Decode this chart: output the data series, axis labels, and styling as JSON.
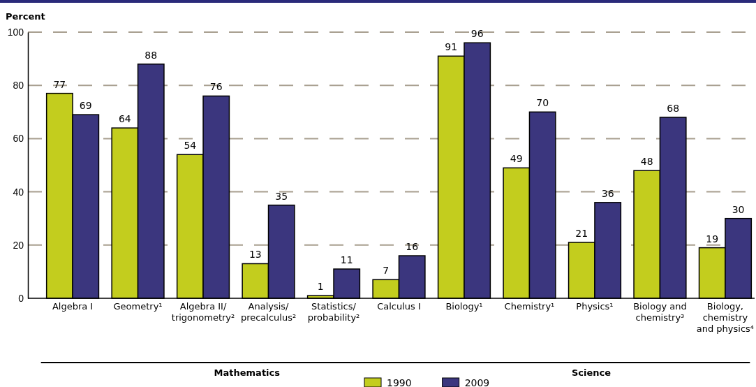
{
  "chart_data": {
    "type": "bar",
    "ylabel": "Percent",
    "categories": [
      "Algebra I",
      "Geometry¹",
      "Algebra II/trigonometry²",
      "Analysis/precalculus²",
      "Statistics/probability²",
      "Calculus I",
      "Biology¹",
      "Chemistry¹",
      "Physics¹",
      "Biology and chemistry³",
      "Biology, chemistry and physics⁴"
    ],
    "series": [
      {
        "name": "1990",
        "color": "#c3cd1e",
        "values": [
          77,
          64,
          54,
          13,
          1,
          7,
          91,
          49,
          21,
          48,
          19
        ]
      },
      {
        "name": "2009",
        "color": "#3b367e",
        "values": [
          69,
          88,
          76,
          35,
          11,
          16,
          96,
          70,
          36,
          68,
          30
        ]
      }
    ],
    "ylim": [
      0,
      100
    ],
    "yticks": [
      0,
      20,
      40,
      60,
      80,
      100
    ],
    "grid": "y",
    "legend": "bottom",
    "data_labels": true,
    "annotations": [
      "Mathematics",
      "Science"
    ]
  }
}
